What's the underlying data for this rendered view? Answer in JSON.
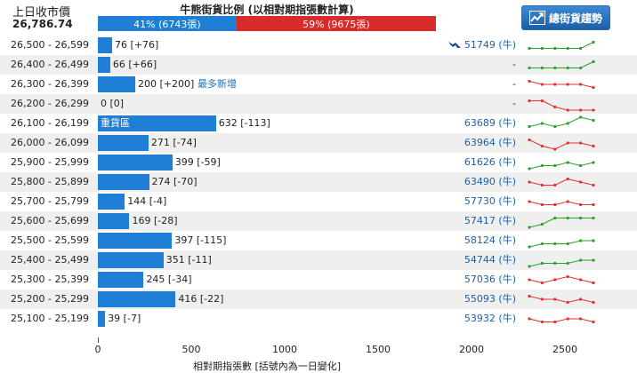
{
  "header": {
    "close_label": "上日收市價",
    "close_value": "26,786.74",
    "ratio_title": "牛熊街貨比例 (以相對期指張數計算)",
    "bull_segment": "41% (6743張)",
    "bear_segment": "59% (9675張)",
    "bull_fraction": 0.41,
    "bear_fraction": 0.59,
    "bull_color": "#1f7fd4",
    "bear_color": "#d92b2b",
    "trend_button_label": "總街貨趨勢",
    "trend_button_icon": "trend-chart-icon"
  },
  "chart_data": {
    "type": "bar",
    "orientation": "horizontal",
    "xlim": [
      0,
      2500
    ],
    "xticks": [
      "0",
      "500",
      "1000",
      "1500",
      "2000",
      "2500"
    ],
    "xlabel": "相對期指張數 [括號內為一日變化]",
    "rows": [
      {
        "range": "26,500 - 26,599",
        "value": 76,
        "label": "76 [+76]",
        "note": "",
        "bull": "51749 (牛)",
        "spark": [
          1,
          1,
          1,
          1,
          1,
          3
        ]
      },
      {
        "range": "26,400 - 26,499",
        "value": 66,
        "label": "66 [+66]",
        "note": "",
        "bull": "-",
        "spark": [
          1,
          1,
          1,
          1,
          1,
          3
        ]
      },
      {
        "range": "26,300 - 26,399",
        "value": 200,
        "label": "200 [+200]",
        "note": "最多新增",
        "bull": "-",
        "spark": [
          3,
          2,
          2,
          2,
          2,
          1
        ]
      },
      {
        "range": "26,200 - 26,299",
        "value": 0,
        "label": "0 [0]",
        "note": "",
        "bull": "-",
        "spark": [
          3,
          3,
          1,
          0,
          0,
          0
        ]
      },
      {
        "range": "26,100 - 26,199",
        "value": 632,
        "label": "632 [-113]",
        "note": "重貨區",
        "bull": "63689 (牛)",
        "spark": [
          1,
          2,
          1,
          2,
          4,
          3
        ]
      },
      {
        "range": "26,000 - 26,099",
        "value": 271,
        "label": "271 [-74]",
        "note": "",
        "bull": "63964 (牛)",
        "spark": [
          3,
          1,
          0,
          2,
          2,
          1
        ]
      },
      {
        "range": "25,900 - 25,999",
        "value": 399,
        "label": "399 [-59]",
        "note": "",
        "bull": "61626 (牛)",
        "spark": [
          0,
          1,
          1,
          2,
          1,
          2
        ]
      },
      {
        "range": "25,800 - 25,899",
        "value": 274,
        "label": "274 [-70]",
        "note": "",
        "bull": "63490 (牛)",
        "spark": [
          2,
          1,
          1,
          3,
          2,
          1
        ]
      },
      {
        "range": "25,700 - 25,799",
        "value": 144,
        "label": "144 [-4]",
        "note": "",
        "bull": "57730 (牛)",
        "spark": [
          2,
          1,
          1,
          2,
          1,
          1
        ]
      },
      {
        "range": "25,600 - 25,699",
        "value": 169,
        "label": "169 [-28]",
        "note": "",
        "bull": "57417 (牛)",
        "spark": [
          0,
          1,
          3,
          3,
          3,
          3
        ]
      },
      {
        "range": "25,500 - 25,599",
        "value": 397,
        "label": "397 [-115]",
        "note": "",
        "bull": "58124 (牛)",
        "spark": [
          0,
          1,
          1,
          1,
          2,
          2
        ]
      },
      {
        "range": "25,400 - 25,499",
        "value": 351,
        "label": "351 [-11]",
        "note": "",
        "bull": "54744 (牛)",
        "spark": [
          0,
          1,
          1,
          1,
          2,
          2
        ]
      },
      {
        "range": "25,300 - 25,399",
        "value": 245,
        "label": "245 [-34]",
        "note": "",
        "bull": "57036 (牛)",
        "spark": [
          2,
          1,
          2,
          3,
          2,
          1
        ]
      },
      {
        "range": "25,200 - 25,299",
        "value": 416,
        "label": "416 [-22]",
        "note": "",
        "bull": "55093 (牛)",
        "spark": [
          3,
          2,
          2,
          1,
          2,
          1
        ]
      },
      {
        "range": "25,100 - 25,199",
        "value": 39,
        "label": "39 [-7]",
        "note": "",
        "bull": "53932 (牛)",
        "spark": [
          2,
          1,
          1,
          2,
          2,
          1
        ]
      }
    ]
  }
}
